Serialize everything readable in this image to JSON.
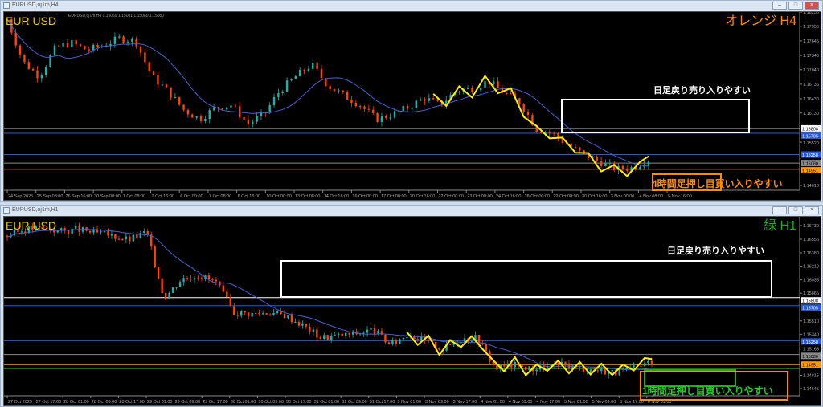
{
  "top": {
    "window_title": "EURUSD,oj1m,H4",
    "ohlc_text": "EURUSD,oj1m,H4 1.15069 1.15081 1.15060 1.15080",
    "symbol_label": "EUR USD",
    "tf_label": "オレンジ H4",
    "tf_color": "#ff8c00",
    "resistance_label": "日足戻り売り入りやすい",
    "support_label": "4時間足押し目買い入りやすい",
    "price_ticks": [
      "1.18250",
      "1.17950",
      "1.17645",
      "1.17340",
      "1.17040",
      "1.16735",
      "1.16430",
      "1.16130",
      "1.15520",
      "1.14610"
    ],
    "price_ticks_values": [
      1.1825,
      1.1795,
      1.17645,
      1.1734,
      1.1704,
      1.16735,
      1.1643,
      1.1613,
      1.1552,
      1.1461
    ],
    "levels": [
      {
        "text": "1.15808",
        "price": 1.15808,
        "color": "#ffffff"
      },
      {
        "text": "1.15705",
        "price": 1.15705,
        "color": "#2a5bd7"
      },
      {
        "text": "1.15258",
        "price": 1.15258,
        "color": "#2a5bd7"
      },
      {
        "text": "1.15080",
        "price": 1.1508,
        "color": "#888888"
      },
      {
        "text": "1.14951",
        "price": 1.14951,
        "color": "#ff9900"
      }
    ],
    "time_ticks": [
      "24 Sep 2025",
      "25 Sep 08:00",
      "26 Sep 16:00",
      "30 Sep 00:00",
      "1 Oct 08:00",
      "2 Oct 16:00",
      "6 Oct 00:00",
      "7 Oct 08:00",
      "8 Oct 16:00",
      "10 Oct 00:00",
      "13 Oct 08:00",
      "14 Oct 16:00",
      "16 Oct 00:00",
      "17 Oct 08:00",
      "20 Oct 16:00",
      "22 Oct 00:00",
      "23 Oct 08:00",
      "24 Oct 16:00",
      "28 Oct 00:00",
      "29 Oct 08:00",
      "30 Oct 16:00",
      "3 Nov 00:00",
      "4 Nov 08:00",
      "5 Nov 16:00"
    ],
    "price_path": [
      1.181,
      1.172,
      1.169,
      1.175,
      1.176,
      1.1745,
      1.1755,
      1.177,
      1.1765,
      1.169,
      1.166,
      1.162,
      1.16,
      1.1625,
      1.163,
      1.159,
      1.161,
      1.166,
      1.169,
      1.1715,
      1.167,
      1.165,
      1.163,
      1.16,
      1.161,
      1.1625,
      1.1645,
      1.163,
      1.166,
      1.1665,
      1.168,
      1.1655,
      1.1635,
      1.158,
      1.157,
      1.1545,
      1.1525,
      1.151,
      1.1495,
      1.1498,
      1.1515
    ]
  },
  "bottom": {
    "window_title": "EURUSD,oj1m,H1",
    "symbol_label": "EUR USD",
    "tf_label": "緑 H1",
    "tf_color": "#22aa22",
    "resistance_label": "日足戻り売り入りやすい",
    "support_label": "1時間足押し目買い入りやすい",
    "price_ticks": [
      "1.16730",
      "1.16555",
      "1.16380",
      "1.16210",
      "1.16035",
      "1.15865",
      "1.15510",
      "1.15340",
      "1.15165",
      "1.14815",
      "1.14645"
    ],
    "price_ticks_values": [
      1.1673,
      1.16555,
      1.1638,
      1.1621,
      1.16035,
      1.15865,
      1.1551,
      1.1534,
      1.15165,
      1.14815,
      1.14645
    ],
    "levels": [
      {
        "text": "1.15808",
        "price": 1.15808,
        "color": "#ffffff"
      },
      {
        "text": "1.15705",
        "price": 1.15705,
        "color": "#2a5bd7"
      },
      {
        "text": "1.15258",
        "price": 1.15258,
        "color": "#2a5bd7"
      },
      {
        "text": "1.15080",
        "price": 1.1508,
        "color": "#888888"
      },
      {
        "text": "1.14951",
        "price": 1.14951,
        "color": "#ff9900"
      }
    ],
    "time_ticks": [
      "27 Oct 2025",
      "27 Oct 17:00",
      "28 Oct 01:00",
      "28 Oct 09:00",
      "28 Oct 17:00",
      "29 Oct 01:00",
      "29 Oct 09:00",
      "29 Oct 17:00",
      "30 Oct 01:00",
      "30 Oct 09:00",
      "30 Oct 17:00",
      "31 Oct 01:00",
      "31 Oct 09:00",
      "31 Oct 17:00",
      "3 Nov 01:00",
      "3 Nov 09:00",
      "3 Nov 17:00",
      "4 Nov 01:00",
      "4 Nov 09:00",
      "4 Nov 17:00",
      "5 Nov 01:00",
      "5 Nov 09:00",
      "5 Nov 17:00",
      "6 Nov 01:00"
    ],
    "price_path": [
      1.166,
      1.1668,
      1.167,
      1.1666,
      1.1668,
      1.1664,
      1.166,
      1.1655,
      1.1665,
      1.158,
      1.1605,
      1.161,
      1.16,
      1.1562,
      1.156,
      1.1562,
      1.1558,
      1.1545,
      1.153,
      1.1532,
      1.1535,
      1.154,
      1.152,
      1.1535,
      1.1525,
      1.1515,
      1.1528,
      1.153,
      1.149,
      1.1495,
      1.149,
      1.1492,
      1.1495,
      1.149,
      1.1488,
      1.1485,
      1.149,
      1.15
    ]
  }
}
